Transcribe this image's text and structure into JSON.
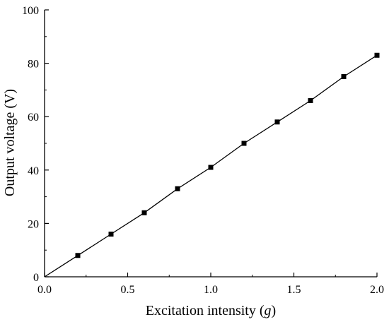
{
  "chart_data": {
    "type": "line",
    "title": "",
    "xlabel_main": "Excitation intensity (",
    "xlabel_unit": "g",
    "xlabel_close": ")",
    "ylabel": "Output voltage (V)",
    "xlim": [
      0.0,
      2.0
    ],
    "ylim": [
      0,
      100
    ],
    "x_ticks": [
      0.0,
      0.5,
      1.0,
      1.5,
      2.0
    ],
    "x_tick_labels": [
      "0.0",
      "0.5",
      "1.0",
      "1.5",
      "2.0"
    ],
    "y_ticks": [
      0,
      20,
      40,
      60,
      80,
      100
    ],
    "y_tick_labels": [
      "0",
      "20",
      "40",
      "60",
      "80",
      "100"
    ],
    "grid": false,
    "legend": "none",
    "series": [
      {
        "x": [
          0.0,
          0.2,
          0.4,
          0.6,
          0.8,
          1.0,
          1.2,
          1.4,
          1.6,
          1.8,
          2.0
        ],
        "y": [
          0,
          8,
          16,
          24,
          33,
          41,
          50,
          58,
          66,
          75,
          83
        ],
        "line_color": "#000000",
        "marker": "square",
        "marker_color": "#000000"
      }
    ]
  }
}
